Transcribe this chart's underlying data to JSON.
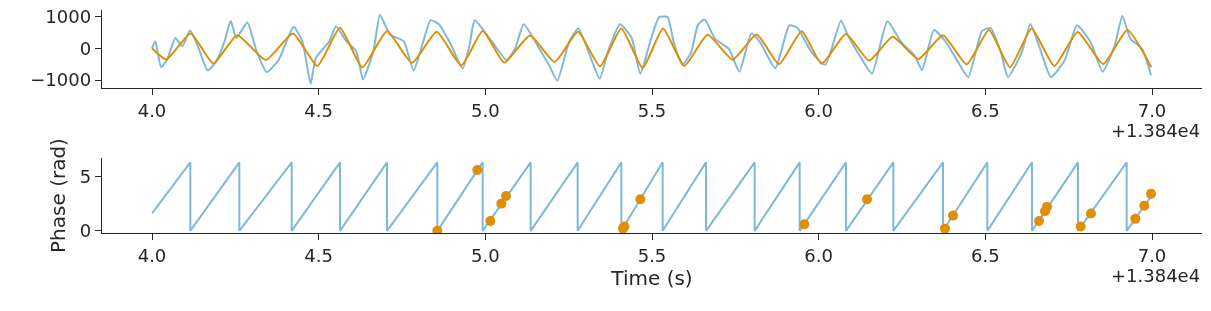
{
  "chart_data": [
    {
      "type": "line",
      "xlim": [
        3.85,
        7.15
      ],
      "ylim": [
        -1250,
        1200
      ],
      "xticks": [
        {
          "value": 4.0,
          "label": "4.0"
        },
        {
          "value": 4.5,
          "label": "4.5"
        },
        {
          "value": 5.0,
          "label": "5.0"
        },
        {
          "value": 5.5,
          "label": "5.5"
        },
        {
          "value": 6.0,
          "label": "6.0"
        },
        {
          "value": 6.5,
          "label": "6.5"
        },
        {
          "value": 7.0,
          "label": "7.0"
        }
      ],
      "yticks": [
        1000,
        0,
        {
          "value": -1000,
          "label": "−1000"
        }
      ],
      "annotations": [
        "+1.384e4"
      ],
      "series": [
        {
          "color": "#80b9d8",
          "x": [
            4.0,
            4.01,
            4.027,
            4.045,
            4.07,
            4.091,
            4.114,
            4.136,
            4.167,
            4.192,
            4.218,
            4.236,
            4.253,
            4.286,
            4.314,
            4.344,
            4.38,
            4.41,
            4.425,
            4.451,
            4.476,
            4.491,
            4.532,
            4.552,
            4.583,
            4.613,
            4.633,
            4.664,
            4.684,
            4.714,
            4.755,
            4.785,
            4.811,
            4.836,
            4.861,
            4.897,
            4.932,
            4.953,
            4.968,
            5.019,
            5.064,
            5.09,
            5.115,
            5.161,
            5.191,
            5.216,
            5.252,
            5.279,
            5.313,
            5.343,
            5.368,
            5.404,
            5.439,
            5.465,
            5.495,
            5.521,
            5.547,
            5.565,
            5.591,
            5.617,
            5.638,
            5.658,
            5.689,
            5.731,
            5.762,
            5.798,
            5.824,
            5.87,
            5.912,
            5.937,
            5.979,
            6.02,
            6.067,
            6.087,
            6.124,
            6.16,
            6.206,
            6.248,
            6.289,
            6.31,
            6.346,
            6.382,
            6.423,
            6.449,
            6.49,
            6.516,
            6.547,
            6.568,
            6.609,
            6.635,
            6.661,
            6.697,
            6.739,
            6.775,
            6.816,
            6.852,
            6.888,
            6.911,
            6.935,
            6.971,
            6.997
          ],
          "values": [
            0,
            220,
            -590,
            -370,
            320,
            60,
            560,
            110,
            -700,
            -430,
            220,
            860,
            320,
            810,
            -100,
            -750,
            -370,
            380,
            670,
            220,
            -1120,
            -320,
            220,
            690,
            220,
            -100,
            -980,
            -100,
            1040,
            430,
            220,
            -700,
            110,
            880,
            750,
            110,
            -640,
            110,
            880,
            220,
            -370,
            0,
            750,
            0,
            -530,
            -1020,
            220,
            620,
            -210,
            -960,
            -100,
            750,
            320,
            -800,
            220,
            970,
            980,
            190,
            -520,
            -140,
            740,
            900,
            300,
            -30,
            -740,
            460,
            190,
            -630,
            720,
            630,
            -140,
            -520,
            870,
            410,
            -250,
            -800,
            850,
            190,
            -250,
            -690,
            570,
            190,
            -520,
            -910,
            540,
            630,
            -140,
            -910,
            -140,
            760,
            80,
            -910,
            -360,
            720,
            190,
            -740,
            80,
            1010,
            300,
            -30,
            -850
          ]
        },
        {
          "color": "#de8f05",
          "x": [
            4.0,
            4.043,
            4.116,
            4.184,
            4.256,
            4.341,
            4.423,
            4.496,
            4.564,
            4.631,
            4.705,
            4.78,
            4.854,
            4.928,
            4.992,
            5.057,
            5.134,
            5.208,
            5.278,
            5.344,
            5.408,
            5.472,
            5.533,
            5.597,
            5.667,
            5.742,
            5.814,
            5.881,
            5.949,
            6.009,
            6.082,
            6.151,
            6.222,
            6.299,
            6.373,
            6.444,
            6.511,
            6.574,
            6.639,
            6.707,
            6.777,
            6.854,
            6.926,
            6.998
          ],
          "values": [
            0,
            -350,
            460,
            -480,
            410,
            -370,
            460,
            -560,
            640,
            -600,
            530,
            -460,
            520,
            -540,
            540,
            -450,
            400,
            -430,
            520,
            -570,
            620,
            -620,
            620,
            -550,
            420,
            -360,
            430,
            -500,
            530,
            -490,
            450,
            -390,
            360,
            -340,
            410,
            -510,
            570,
            -600,
            620,
            -560,
            510,
            -500,
            570,
            -600
          ]
        }
      ]
    },
    {
      "type": "line",
      "xlabel": "Time (s)",
      "ylabel": "Phase (rad)",
      "xlim": [
        3.85,
        7.15
      ],
      "ylim": [
        -0.2,
        6.7
      ],
      "xticks": [
        {
          "value": 4.0,
          "label": "4.0"
        },
        {
          "value": 4.5,
          "label": "4.5"
        },
        {
          "value": 5.0,
          "label": "5.0"
        },
        {
          "value": 5.5,
          "label": "5.5"
        },
        {
          "value": 6.0,
          "label": "6.0"
        },
        {
          "value": 6.5,
          "label": "6.5"
        },
        {
          "value": 7.0,
          "label": "7.0"
        }
      ],
      "yticks": [
        0,
        5
      ],
      "annotations": [
        "+1.384e4"
      ],
      "series": [
        {
          "color": "#80b9d8",
          "x": [
            4.0,
            4.115,
            4.115,
            4.262,
            4.262,
            4.419,
            4.419,
            4.564,
            4.564,
            4.705,
            4.705,
            4.856,
            4.856,
            4.992,
            4.992,
            5.136,
            5.136,
            5.277,
            5.277,
            5.408,
            5.408,
            5.532,
            5.532,
            5.662,
            5.662,
            5.808,
            5.808,
            5.943,
            5.943,
            6.082,
            6.082,
            6.224,
            6.224,
            6.373,
            6.373,
            6.506,
            6.506,
            6.64,
            6.64,
            6.778,
            6.778,
            6.924,
            6.924,
            7.0
          ],
          "values": [
            1.6,
            6.3,
            0,
            6.3,
            0,
            6.3,
            0,
            6.3,
            0,
            6.3,
            0,
            6.3,
            0,
            6.3,
            0,
            6.3,
            0,
            6.3,
            0,
            6.3,
            0,
            6.3,
            0,
            6.3,
            0,
            6.3,
            0,
            6.3,
            0,
            6.3,
            0,
            6.3,
            0,
            6.3,
            0,
            6.3,
            0,
            6.3,
            0,
            6.3,
            0,
            6.3,
            0,
            3.3
          ]
        },
        {
          "type": "scatter",
          "color": "#de8f05",
          "marker": "circle",
          "x": [
            4.856,
            4.976,
            5.015,
            5.048,
            5.062,
            5.413,
            5.417,
            5.465,
            5.957,
            6.145,
            6.379,
            6.403,
            6.661,
            6.679,
            6.685,
            6.786,
            6.817,
            6.95,
            6.977,
            6.997
          ],
          "values": [
            0.0,
            5.6,
            0.9,
            2.5,
            3.2,
            0.2,
            0.4,
            2.9,
            0.6,
            2.9,
            0.2,
            1.4,
            0.9,
            1.8,
            2.2,
            0.4,
            1.6,
            1.1,
            2.3,
            3.4
          ]
        }
      ]
    }
  ]
}
